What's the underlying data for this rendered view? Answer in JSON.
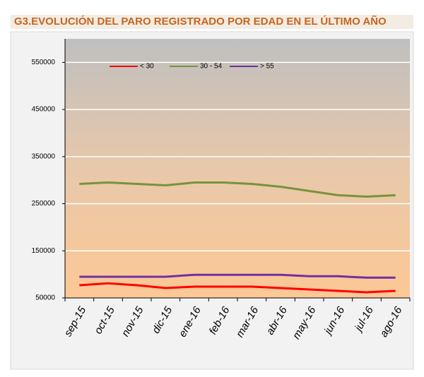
{
  "chart_data": {
    "type": "line",
    "title": "G3.EVOLUCIÓN DEL PARO REGISTRADO POR EDAD EN EL ÚLTIMO AÑO",
    "categories": [
      "sep-15",
      "oct-15",
      "nov-15",
      "dic-15",
      "ene-16",
      "feb-16",
      "mar-16",
      "abr-16",
      "may-16",
      "jun-16",
      "jul-16",
      "ago-16"
    ],
    "series": [
      {
        "name": "< 30",
        "color": "#ff0000",
        "values": [
          77000,
          81000,
          77000,
          71000,
          74000,
          74000,
          74000,
          71000,
          68000,
          65000,
          62000,
          65000
        ]
      },
      {
        "name": "30 - 54",
        "color": "#77933c",
        "values": [
          292000,
          295000,
          292000,
          289000,
          295000,
          295000,
          292000,
          286000,
          277000,
          268000,
          265000,
          268000
        ]
      },
      {
        "name": "> 55",
        "color": "#7030a0",
        "values": [
          95000,
          95000,
          95000,
          95000,
          99000,
          99000,
          99000,
          99000,
          96000,
          96000,
          93000,
          93000
        ]
      }
    ],
    "ylim": [
      50000,
      600000
    ],
    "yticks": [
      50000,
      150000,
      250000,
      350000,
      450000,
      550000
    ],
    "grid": true,
    "legend": "top"
  }
}
